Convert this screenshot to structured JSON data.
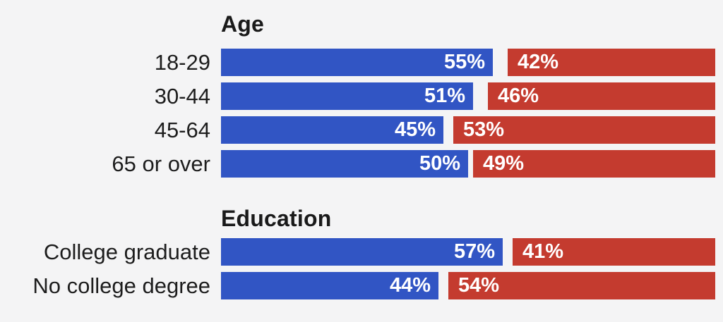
{
  "chart_data": {
    "type": "bar",
    "orientation": "horizontal-paired",
    "unit": "%",
    "axis_max": 100,
    "grid": false,
    "legend": "none",
    "colors": {
      "blue": "#3155c4",
      "red": "#c43b2f",
      "background": "#f4f4f5",
      "text": "#1d1d1d",
      "value_text": "#ffffff"
    },
    "groups": [
      {
        "title": "Age",
        "rows": [
          {
            "label": "18-29",
            "blue": 55,
            "red": 42
          },
          {
            "label": "30-44",
            "blue": 51,
            "red": 46
          },
          {
            "label": "45-64",
            "blue": 45,
            "red": 53
          },
          {
            "label": "65 or over",
            "blue": 50,
            "red": 49
          }
        ]
      },
      {
        "title": "Education",
        "rows": [
          {
            "label": "College graduate",
            "blue": 57,
            "red": 41
          },
          {
            "label": "No college degree",
            "blue": 44,
            "red": 54
          }
        ]
      }
    ]
  }
}
